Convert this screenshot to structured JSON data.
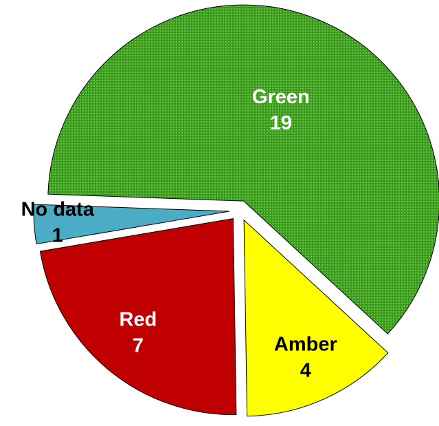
{
  "chart_data": {
    "type": "pie",
    "categories": [
      "Green",
      "Amber",
      "Red",
      "No data"
    ],
    "values": [
      19,
      4,
      7,
      1
    ],
    "colors": [
      "#3a9a1c",
      "#ffff00",
      "#c00000",
      "#4bacc6"
    ],
    "exploded": true
  }
}
